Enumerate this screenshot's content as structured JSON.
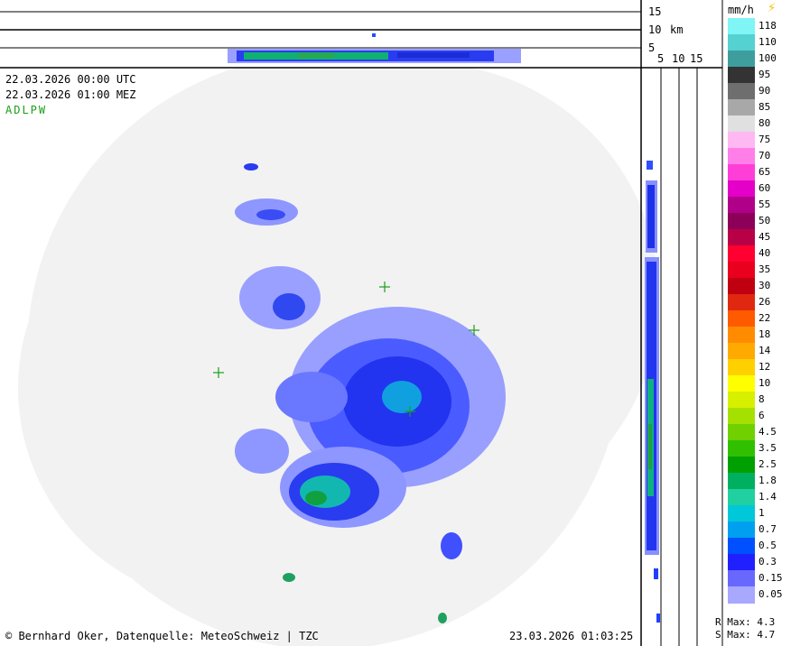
{
  "header": {
    "utc_time": "22.03.2026 00:00 UTC",
    "local_time": "22.03.2026 01:00 MEZ",
    "stations": "ADLPW"
  },
  "top_profile": {
    "km_ticks": [
      "15",
      "10",
      "5"
    ],
    "unit": "km"
  },
  "side_profile": {
    "km_ticks": [
      "5",
      "10",
      "15"
    ]
  },
  "legend": {
    "unit": "mm/h",
    "lightning_icon": "lightning-icon",
    "entries": [
      {
        "label": "118",
        "color": "#7ff5f5"
      },
      {
        "label": "110",
        "color": "#55d1d1"
      },
      {
        "label": "100",
        "color": "#3e9e9e"
      },
      {
        "label": "95",
        "color": "#333333"
      },
      {
        "label": "90",
        "color": "#6e6e6e"
      },
      {
        "label": "85",
        "color": "#a8a8a8"
      },
      {
        "label": "80",
        "color": "#e0e0e0"
      },
      {
        "label": "75",
        "color": "#ffb8f2"
      },
      {
        "label": "70",
        "color": "#ff7ee8"
      },
      {
        "label": "65",
        "color": "#ff3ed8"
      },
      {
        "label": "60",
        "color": "#e400c8"
      },
      {
        "label": "55",
        "color": "#b0008a"
      },
      {
        "label": "50",
        "color": "#8c005a"
      },
      {
        "label": "45",
        "color": "#b80046"
      },
      {
        "label": "40",
        "color": "#ff0030"
      },
      {
        "label": "35",
        "color": "#e8001e"
      },
      {
        "label": "30",
        "color": "#c00010"
      },
      {
        "label": "26",
        "color": "#e02810"
      },
      {
        "label": "22",
        "color": "#ff5a00"
      },
      {
        "label": "18",
        "color": "#ff8c00"
      },
      {
        "label": "14",
        "color": "#ffaa00"
      },
      {
        "label": "12",
        "color": "#ffd000"
      },
      {
        "label": "10",
        "color": "#ffff00"
      },
      {
        "label": "8",
        "color": "#d6f000"
      },
      {
        "label": "6",
        "color": "#a6e000"
      },
      {
        "label": "4.5",
        "color": "#70d000"
      },
      {
        "label": "3.5",
        "color": "#30c000"
      },
      {
        "label": "2.5",
        "color": "#00a000"
      },
      {
        "label": "1.8",
        "color": "#00b060"
      },
      {
        "label": "1.4",
        "color": "#20d0a0"
      },
      {
        "label": "1",
        "color": "#00c8d8"
      },
      {
        "label": "0.7",
        "color": "#00a0f0"
      },
      {
        "label": "0.5",
        "color": "#0050ff"
      },
      {
        "label": "0.3",
        "color": "#2020ff"
      },
      {
        "label": "0.15",
        "color": "#6868ff"
      },
      {
        "label": "0.05",
        "color": "#a8a8ff"
      }
    ]
  },
  "stats": {
    "r_max": "R Max: 4.3",
    "s_max": "S Max: 4.7"
  },
  "footer": {
    "copyright": "© Bernhard Oker, Datenquelle: MeteoSchweiz | TZC",
    "timestamp": "23.03.2026 01:03:25"
  },
  "colors": {
    "station_label": "#1aa01a",
    "cross": "#1aa01a",
    "coverage": "#f2f2f2"
  }
}
